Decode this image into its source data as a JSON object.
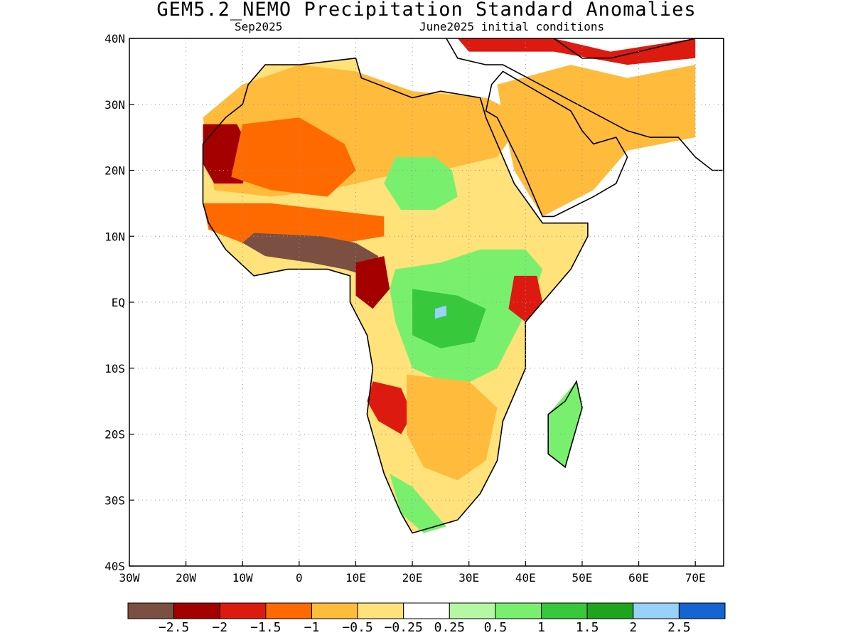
{
  "title": "GEM5.2_NEMO Precipitation Standard Anomalies",
  "subtitle_left": "Sep2025",
  "subtitle_right": "June2025 initial conditions",
  "map": {
    "lon_range": [
      -30,
      75
    ],
    "lat_range": [
      -40,
      40
    ],
    "x_ticks": [
      {
        "lon": -30,
        "label": "30W"
      },
      {
        "lon": -20,
        "label": "20W"
      },
      {
        "lon": -10,
        "label": "10W"
      },
      {
        "lon": 0,
        "label": "0"
      },
      {
        "lon": 10,
        "label": "10E"
      },
      {
        "lon": 20,
        "label": "20E"
      },
      {
        "lon": 30,
        "label": "30E"
      },
      {
        "lon": 40,
        "label": "40E"
      },
      {
        "lon": 50,
        "label": "50E"
      },
      {
        "lon": 60,
        "label": "60E"
      },
      {
        "lon": 70,
        "label": "70E"
      }
    ],
    "y_ticks": [
      {
        "lat": 40,
        "label": "40N"
      },
      {
        "lat": 30,
        "label": "30N"
      },
      {
        "lat": 20,
        "label": "20N"
      },
      {
        "lat": 10,
        "label": "10N"
      },
      {
        "lat": 0,
        "label": "EQ"
      },
      {
        "lat": -10,
        "label": "10S"
      },
      {
        "lat": -20,
        "label": "20S"
      },
      {
        "lat": -30,
        "label": "30S"
      },
      {
        "lat": -40,
        "label": "40S"
      }
    ],
    "grid": true
  },
  "colorbar": {
    "colors": [
      "#7b4f42",
      "#a50000",
      "#dd1a10",
      "#ff6a00",
      "#ffbb3c",
      "#ffe27a",
      "#ffffff",
      "#b4f8a4",
      "#78f06e",
      "#38c83c",
      "#1ea51e",
      "#96d2fa",
      "#1464d2"
    ],
    "labels": [
      "−2.5",
      "−2",
      "−1.5",
      "−1",
      "−0.5",
      "−0.25",
      "0.25",
      "0.5",
      "1",
      "1.5",
      "2",
      "2.5"
    ]
  },
  "anomaly_regions": [
    {
      "name": "sahara-orange",
      "color": "#ffbb3c",
      "pts": [
        [
          -17,
          28
        ],
        [
          -10,
          33
        ],
        [
          0,
          36
        ],
        [
          10,
          35
        ],
        [
          20,
          32
        ],
        [
          33,
          31
        ],
        [
          40,
          28
        ],
        [
          35,
          22
        ],
        [
          25,
          20
        ],
        [
          15,
          19
        ],
        [
          5,
          17
        ],
        [
          -5,
          16
        ],
        [
          -15,
          17
        ]
      ]
    },
    {
      "name": "mauritania-red",
      "color": "#a50000",
      "pts": [
        [
          -17,
          27
        ],
        [
          -11,
          27
        ],
        [
          -8,
          22
        ],
        [
          -10,
          18
        ],
        [
          -15,
          18
        ],
        [
          -17,
          21
        ]
      ]
    },
    {
      "name": "sahara-central-orange",
      "color": "#ff6a00",
      "pts": [
        [
          -10,
          27
        ],
        [
          0,
          28
        ],
        [
          8,
          24
        ],
        [
          10,
          20
        ],
        [
          5,
          16
        ],
        [
          -5,
          17
        ],
        [
          -12,
          19
        ]
      ]
    },
    {
      "name": "sahel-orange",
      "color": "#ff6a00",
      "pts": [
        [
          -17,
          15
        ],
        [
          -5,
          15
        ],
        [
          5,
          14
        ],
        [
          15,
          13
        ],
        [
          15,
          10
        ],
        [
          8,
          9
        ],
        [
          0,
          9
        ],
        [
          -10,
          9
        ],
        [
          -16,
          11
        ]
      ]
    },
    {
      "name": "gulf-guinea-brown",
      "color": "#7b4f42",
      "pts": [
        [
          -8,
          10.5
        ],
        [
          4,
          10
        ],
        [
          10,
          9
        ],
        [
          14,
          7
        ],
        [
          12,
          4
        ],
        [
          8,
          5
        ],
        [
          2,
          6
        ],
        [
          -6,
          7
        ],
        [
          -10,
          9
        ]
      ]
    },
    {
      "name": "cameroon-darkred",
      "color": "#a50000",
      "pts": [
        [
          10,
          6
        ],
        [
          15,
          7
        ],
        [
          16,
          2
        ],
        [
          13,
          -1
        ],
        [
          10,
          1
        ]
      ]
    },
    {
      "name": "arabia-orange",
      "color": "#ffbb3c",
      "pts": [
        [
          35,
          33
        ],
        [
          48,
          36
        ],
        [
          58,
          34
        ],
        [
          70,
          36
        ],
        [
          70,
          25
        ],
        [
          58,
          23
        ],
        [
          52,
          17
        ],
        [
          43,
          13
        ],
        [
          38,
          20
        ],
        [
          36,
          28
        ]
      ]
    },
    {
      "name": "north-mediterranean-red",
      "color": "#dd1a10",
      "pts": [
        [
          28,
          40
        ],
        [
          45,
          40
        ],
        [
          55,
          38
        ],
        [
          70,
          40
        ],
        [
          70,
          37
        ],
        [
          58,
          36
        ],
        [
          45,
          38
        ],
        [
          30,
          38
        ]
      ]
    },
    {
      "name": "central-africa-green",
      "color": "#78f06e",
      "pts": [
        [
          17,
          5
        ],
        [
          25,
          6
        ],
        [
          32,
          8
        ],
        [
          40,
          8
        ],
        [
          43,
          5
        ],
        [
          41,
          0
        ],
        [
          38,
          -5
        ],
        [
          35,
          -10
        ],
        [
          28,
          -13
        ],
        [
          20,
          -10
        ],
        [
          17,
          -3
        ],
        [
          16,
          2
        ]
      ]
    },
    {
      "name": "congo-darkgreen",
      "color": "#38c83c",
      "pts": [
        [
          20,
          2
        ],
        [
          28,
          1
        ],
        [
          33,
          -1
        ],
        [
          31,
          -6
        ],
        [
          25,
          -7
        ],
        [
          20,
          -5
        ]
      ]
    },
    {
      "name": "congo-blue",
      "color": "#96d2fa",
      "pts": [
        [
          24,
          -1
        ],
        [
          26,
          -0.5
        ],
        [
          26,
          -2
        ],
        [
          24,
          -2.5
        ]
      ]
    },
    {
      "name": "sahel-east-green",
      "color": "#78f06e",
      "pts": [
        [
          17,
          22
        ],
        [
          24,
          22
        ],
        [
          27,
          20
        ],
        [
          28,
          16
        ],
        [
          24,
          14
        ],
        [
          18,
          14
        ],
        [
          15,
          18
        ]
      ]
    },
    {
      "name": "angola-red",
      "color": "#dd1a10",
      "pts": [
        [
          13,
          -12
        ],
        [
          18,
          -13
        ],
        [
          20,
          -17
        ],
        [
          18,
          -20
        ],
        [
          14,
          -18
        ],
        [
          12,
          -15
        ]
      ]
    },
    {
      "name": "southern-africa-orange",
      "color": "#ffbb3c",
      "pts": [
        [
          19,
          -11
        ],
        [
          30,
          -12
        ],
        [
          35,
          -16
        ],
        [
          33,
          -24
        ],
        [
          28,
          -27
        ],
        [
          22,
          -25
        ],
        [
          19,
          -20
        ]
      ]
    },
    {
      "name": "kenya-red",
      "color": "#dd1a10",
      "pts": [
        [
          38,
          4
        ],
        [
          42,
          4
        ],
        [
          43,
          0
        ],
        [
          40,
          -3
        ],
        [
          37,
          -1
        ]
      ]
    },
    {
      "name": "south-africa-green",
      "color": "#78f06e",
      "pts": [
        [
          16,
          -26
        ],
        [
          20,
          -28
        ],
        [
          26,
          -34
        ],
        [
          22,
          -35
        ],
        [
          18,
          -32
        ]
      ]
    },
    {
      "name": "madagascar-green",
      "color": "#78f06e",
      "pts": [
        [
          46,
          -15
        ],
        [
          49,
          -12
        ],
        [
          50,
          -16
        ],
        [
          47,
          -25
        ],
        [
          44,
          -23
        ],
        [
          44,
          -17
        ]
      ]
    }
  ],
  "coastline": {
    "africa": [
      [
        -17,
        21
      ],
      [
        -17,
        24
      ],
      [
        -13,
        28
      ],
      [
        -10,
        30
      ],
      [
        -9,
        33
      ],
      [
        -6,
        36
      ],
      [
        0,
        36
      ],
      [
        10,
        37
      ],
      [
        11,
        34
      ],
      [
        20,
        31
      ],
      [
        25,
        32
      ],
      [
        32,
        31
      ],
      [
        33,
        28
      ],
      [
        36,
        22
      ],
      [
        38,
        18
      ],
      [
        43,
        12
      ],
      [
        51,
        12
      ],
      [
        51,
        10
      ],
      [
        48,
        5
      ],
      [
        40,
        -3
      ],
      [
        40,
        -10
      ],
      [
        36,
        -18
      ],
      [
        35,
        -24
      ],
      [
        32,
        -29
      ],
      [
        28,
        -33
      ],
      [
        20,
        -35
      ],
      [
        18,
        -32
      ],
      [
        15,
        -26
      ],
      [
        12,
        -17
      ],
      [
        13,
        -10
      ],
      [
        12,
        -5
      ],
      [
        9,
        0
      ],
      [
        9,
        4
      ],
      [
        5,
        5
      ],
      [
        -2,
        5
      ],
      [
        -8,
        4
      ],
      [
        -13,
        8
      ],
      [
        -16,
        12
      ],
      [
        -17,
        15
      ]
    ],
    "madagascar": [
      [
        49,
        -12
      ],
      [
        50,
        -16
      ],
      [
        48,
        -22
      ],
      [
        47,
        -25
      ],
      [
        44,
        -23
      ],
      [
        44,
        -17
      ],
      [
        47,
        -15
      ]
    ],
    "arabia": [
      [
        33,
        29
      ],
      [
        35,
        28
      ],
      [
        39,
        21
      ],
      [
        43,
        13
      ],
      [
        45,
        13
      ],
      [
        52,
        16
      ],
      [
        56,
        18
      ],
      [
        58,
        22
      ],
      [
        56,
        25
      ],
      [
        52,
        24
      ],
      [
        50,
        26
      ],
      [
        48,
        29
      ],
      [
        44,
        31
      ],
      [
        40,
        33
      ],
      [
        36,
        35
      ],
      [
        34,
        33
      ]
    ],
    "asia_south": [
      [
        58,
        26
      ],
      [
        62,
        25
      ],
      [
        67,
        25
      ],
      [
        70,
        22
      ],
      [
        73,
        20
      ],
      [
        75,
        20
      ],
      [
        75,
        40
      ],
      [
        70,
        40
      ],
      [
        60,
        38
      ],
      [
        55,
        37
      ],
      [
        50,
        37
      ],
      [
        45,
        40
      ],
      [
        40,
        41
      ],
      [
        30,
        41
      ],
      [
        26,
        40
      ],
      [
        28,
        37
      ],
      [
        33,
        36
      ],
      [
        36,
        36
      ]
    ]
  }
}
